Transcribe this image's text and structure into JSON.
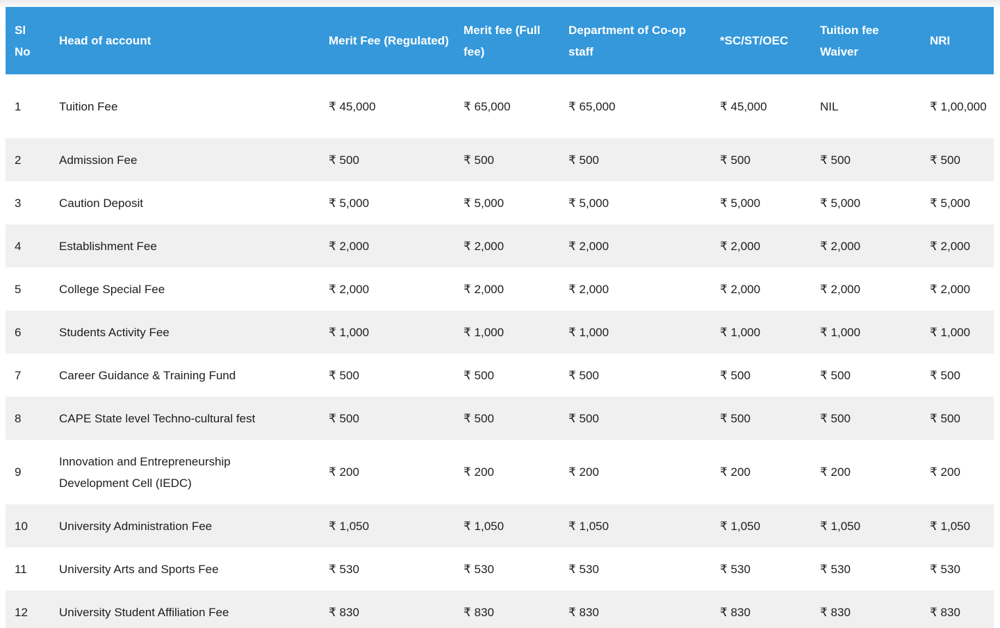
{
  "colors": {
    "header_bg": "#3498db",
    "header_text": "#ffffff",
    "row_stripe": "#f0f0f0",
    "row_plain": "#ffffff",
    "body_text": "#1d1d1d"
  },
  "table": {
    "columns": [
      {
        "id": "sl-no",
        "label": "Sl No"
      },
      {
        "id": "head-of-account",
        "label": "Head of account"
      },
      {
        "id": "merit-fee-regulated",
        "label": "Merit Fee (Regulated)"
      },
      {
        "id": "merit-fee-full",
        "label": "Merit fee (Full fee)"
      },
      {
        "id": "dept-coop-staff",
        "label": "Department of Co-op staff"
      },
      {
        "id": "sc-st-oec",
        "label": "*SC/ST/OEC"
      },
      {
        "id": "tuition-fee-waiver",
        "label": "Tuition fee Waiver"
      },
      {
        "id": "nri",
        "label": "NRI"
      }
    ],
    "rows": [
      {
        "cells": [
          "1",
          "Tuition Fee",
          "₹ 45,000",
          "₹ 65,000",
          "₹ 65,000",
          "₹ 45,000",
          "NIL",
          "₹ 1,00,000"
        ]
      },
      {
        "cells": [
          "2",
          "Admission Fee",
          "₹ 500",
          "₹ 500",
          "₹ 500",
          "₹ 500",
          "₹ 500",
          "₹ 500"
        ]
      },
      {
        "cells": [
          "3",
          "Caution Deposit",
          "₹ 5,000",
          "₹ 5,000",
          "₹ 5,000",
          "₹ 5,000",
          "₹ 5,000",
          "₹ 5,000"
        ]
      },
      {
        "cells": [
          "4",
          "Establishment Fee",
          "₹ 2,000",
          "₹ 2,000",
          "₹ 2,000",
          "₹ 2,000",
          "₹ 2,000",
          "₹ 2,000"
        ]
      },
      {
        "cells": [
          "5",
          "College Special Fee",
          "₹ 2,000",
          "₹ 2,000",
          "₹ 2,000",
          "₹ 2,000",
          "₹ 2,000",
          "₹ 2,000"
        ]
      },
      {
        "cells": [
          "6",
          "Students Activity Fee",
          "₹ 1,000",
          "₹ 1,000",
          "₹ 1,000",
          "₹ 1,000",
          "₹ 1,000",
          "₹ 1,000"
        ]
      },
      {
        "cells": [
          "7",
          "Career Guidance & Training Fund",
          "₹ 500",
          "₹ 500",
          "₹ 500",
          "₹ 500",
          "₹ 500",
          "₹ 500"
        ]
      },
      {
        "cells": [
          "8",
          "CAPE State level Techno-cultural fest",
          "₹ 500",
          "₹ 500",
          "₹ 500",
          "₹ 500",
          "₹ 500",
          "₹ 500"
        ]
      },
      {
        "cells": [
          "9",
          "Innovation and Entrepreneurship Development Cell (IEDC)",
          "₹ 200",
          "₹ 200",
          "₹ 200",
          "₹ 200",
          "₹ 200",
          "₹ 200"
        ]
      },
      {
        "cells": [
          "10",
          "University Administration Fee",
          "₹ 1,050",
          "₹ 1,050",
          "₹ 1,050",
          "₹ 1,050",
          "₹ 1,050",
          "₹ 1,050"
        ]
      },
      {
        "cells": [
          "11",
          "University Arts and Sports Fee",
          "₹ 530",
          "₹ 530",
          "₹ 530",
          "₹ 530",
          "₹ 530",
          "₹ 530"
        ]
      },
      {
        "cells": [
          "12",
          "University Student Affiliation Fee",
          "₹ 830",
          "₹ 830",
          "₹ 830",
          "₹ 830",
          "₹ 830",
          "₹ 830"
        ]
      }
    ]
  }
}
